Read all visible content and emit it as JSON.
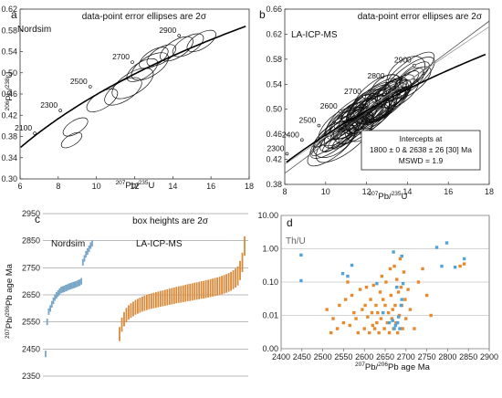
{
  "chart_data": [
    {
      "type": "scatter",
      "panel": "a",
      "title": "data-point error ellipses are 2σ",
      "label": "Nordsim",
      "xlabel": {
        "sup1": "207",
        "main1": "Pb/",
        "sup2": "235",
        "main2": "U"
      },
      "ylabel": {
        "sup1": "206",
        "main1": "Pb/",
        "sup2": "238",
        "main2": "U"
      },
      "xlim": [
        6,
        18
      ],
      "ylim": [
        0.3,
        0.62
      ],
      "xticks": [
        6,
        8,
        10,
        12,
        14,
        16,
        18
      ],
      "yticks": [
        0.3,
        0.34,
        0.38,
        0.42,
        0.46,
        0.5,
        0.54,
        0.58,
        0.62
      ],
      "ytick_labels": [
        "0.30",
        "0.34",
        "0.38",
        "0.42",
        "0.46",
        "0.50",
        "0.54",
        "0.58",
        "0.62"
      ],
      "concordia_labels": [
        {
          "age": "2100",
          "x": 6.77,
          "y": 0.386
        },
        {
          "age": "2300",
          "x": 8.11,
          "y": 0.429
        },
        {
          "age": "2500",
          "x": 9.67,
          "y": 0.474
        },
        {
          "age": "2700",
          "x": 11.88,
          "y": 0.52
        },
        {
          "age": "2900",
          "x": 14.33,
          "y": 0.57
        }
      ],
      "ellipses": [
        {
          "x": 8.7,
          "y": 0.373,
          "rx": 0.45,
          "ry": 0.01
        },
        {
          "x": 8.9,
          "y": 0.398,
          "rx": 0.55,
          "ry": 0.012
        },
        {
          "x": 10.3,
          "y": 0.448,
          "rx": 0.6,
          "ry": 0.015
        },
        {
          "x": 11.4,
          "y": 0.465,
          "rx": 0.8,
          "ry": 0.018
        },
        {
          "x": 11.9,
          "y": 0.48,
          "rx": 0.9,
          "ry": 0.02
        },
        {
          "x": 12.4,
          "y": 0.505,
          "rx": 0.7,
          "ry": 0.015
        },
        {
          "x": 12.8,
          "y": 0.512,
          "rx": 0.9,
          "ry": 0.018
        },
        {
          "x": 13.0,
          "y": 0.528,
          "rx": 0.6,
          "ry": 0.014
        },
        {
          "x": 13.4,
          "y": 0.533,
          "rx": 0.7,
          "ry": 0.014
        },
        {
          "x": 14.2,
          "y": 0.545,
          "rx": 0.9,
          "ry": 0.016
        },
        {
          "x": 14.8,
          "y": 0.552,
          "rx": 0.9,
          "ry": 0.015
        },
        {
          "x": 15.5,
          "y": 0.56,
          "rx": 0.8,
          "ry": 0.014
        }
      ]
    },
    {
      "type": "scatter",
      "panel": "b",
      "title": "data-point error ellipses are 2σ",
      "label": "LA-ICP-MS",
      "xlabel": {
        "sup1": "207",
        "main1": "Pb/",
        "sup2": "235",
        "main2": "U"
      },
      "xlim": [
        8,
        18
      ],
      "ylim": [
        0.38,
        0.66
      ],
      "xticks": [
        8,
        10,
        12,
        14,
        16,
        18
      ],
      "yticks": [
        0.38,
        0.42,
        0.46,
        0.5,
        0.54,
        0.58,
        0.62,
        0.66
      ],
      "ytick_labels": [
        "0.38",
        "0.42",
        "0.46",
        "0.50",
        "0.54",
        "0.58",
        "0.62",
        "0.66"
      ],
      "concordia_labels": [
        {
          "age": "2300",
          "x": 8.11,
          "y": 0.429
        },
        {
          "age": "2400",
          "x": 8.84,
          "y": 0.451
        },
        {
          "age": "2500",
          "x": 9.67,
          "y": 0.474
        },
        {
          "age": "2600",
          "x": 10.71,
          "y": 0.497
        },
        {
          "age": "2700",
          "x": 11.88,
          "y": 0.52
        },
        {
          "age": "2800",
          "x": 13.02,
          "y": 0.545
        },
        {
          "age": "2900",
          "x": 14.33,
          "y": 0.57
        }
      ],
      "intercepts": {
        "line1": "Intercepts at",
        "line2": "1800 ± 0 & 2638 ± 26 [30] Ma",
        "line3": "MSWD = 1.9"
      }
    },
    {
      "type": "bar",
      "panel": "c",
      "title": "box heights are 2σ",
      "ylabel": {
        "sup1": "207",
        "main1": "Pb/",
        "sup2": "206",
        "main2": "Pb age Ma"
      },
      "ylim": [
        2350,
        2950
      ],
      "yticks": [
        2350,
        2450,
        2550,
        2650,
        2750,
        2850,
        2950
      ],
      "series": [
        {
          "name": "Nordsim",
          "color": "#7aa6c8",
          "values": [
            2432,
            2550,
            2588,
            2600,
            2615,
            2628,
            2640,
            2648,
            2655,
            2662,
            2668,
            2670,
            2672,
            2675,
            2677,
            2680,
            2682,
            2684,
            2686,
            2688,
            2690,
            2693,
            2695,
            2700,
            2770,
            2785,
            2800,
            2810,
            2820,
            2832,
            2840
          ]
        },
        {
          "name": "LA-ICP-MS",
          "color": "#d98a3a",
          "values": [
            2505,
            2540,
            2560,
            2575,
            2585,
            2592,
            2598,
            2604,
            2608,
            2612,
            2616,
            2619,
            2622,
            2625,
            2627,
            2629,
            2631,
            2633,
            2635,
            2637,
            2639,
            2641,
            2643,
            2645,
            2647,
            2649,
            2651,
            2652,
            2654,
            2656,
            2658,
            2659,
            2661,
            2663,
            2664,
            2666,
            2668,
            2669,
            2671,
            2673,
            2675,
            2677,
            2679,
            2681,
            2683,
            2686,
            2689,
            2692,
            2696,
            2700,
            2706,
            2712,
            2720,
            2740,
            2770,
            2830
          ]
        }
      ]
    },
    {
      "type": "scatter",
      "panel": "d",
      "label": "Th/U",
      "xlabel": {
        "sup1": "207",
        "main1": "Pb/",
        "sup2": "206",
        "main2": "Pb age Ma"
      },
      "xlim": [
        2400,
        2900
      ],
      "ylim_log": [
        0.001,
        10
      ],
      "xticks": [
        2400,
        2450,
        2500,
        2550,
        2600,
        2650,
        2700,
        2750,
        2800,
        2850,
        2900
      ],
      "yticks": [
        0.001,
        0.01,
        0.1,
        1,
        10
      ],
      "ytick_labels": [
        "0.00",
        "0.01",
        "0.10",
        "1.00",
        "10.00"
      ],
      "series": [
        {
          "name": "Nordsim",
          "color": "#4fa3d8",
          "points": [
            [
              2448,
              0.65
            ],
            [
              2448,
              0.11
            ],
            [
              2548,
              0.18
            ],
            [
              2560,
              0.15
            ],
            [
              2570,
              0.32
            ],
            [
              2630,
              0.09
            ],
            [
              2645,
              0.012
            ],
            [
              2660,
              0.006
            ],
            [
              2668,
              0.007
            ],
            [
              2672,
              0.004
            ],
            [
              2675,
              0.005
            ],
            [
              2678,
              0.07
            ],
            [
              2680,
              0.006
            ],
            [
              2682,
              0.009
            ],
            [
              2685,
              0.004
            ],
            [
              2688,
              0.02
            ],
            [
              2690,
              0.03
            ],
            [
              2693,
              0.09
            ],
            [
              2670,
              0.8
            ],
            [
              2690,
              0.6
            ],
            [
              2774,
              1.1
            ],
            [
              2786,
              0.3
            ],
            [
              2798,
              1.5
            ],
            [
              2818,
              0.28
            ],
            [
              2840,
              0.5
            ]
          ]
        },
        {
          "name": "LA-ICP-MS",
          "color": "#e8892b",
          "points": [
            [
              2510,
              0.015
            ],
            [
              2520,
              0.003
            ],
            [
              2525,
              0.008
            ],
            [
              2535,
              0.004
            ],
            [
              2540,
              0.02
            ],
            [
              2550,
              0.006
            ],
            [
              2555,
              0.03
            ],
            [
              2560,
              0.1
            ],
            [
              2565,
              0.005
            ],
            [
              2570,
              0.04
            ],
            [
              2575,
              0.012
            ],
            [
              2580,
              0.008
            ],
            [
              2585,
              0.003
            ],
            [
              2590,
              0.06
            ],
            [
              2595,
              0.015
            ],
            [
              2600,
              0.004
            ],
            [
              2602,
              0.02
            ],
            [
              2605,
              0.07
            ],
            [
              2608,
              0.009
            ],
            [
              2612,
              0.003
            ],
            [
              2615,
              0.03
            ],
            [
              2618,
              0.012
            ],
            [
              2620,
              0.005
            ],
            [
              2622,
              0.08
            ],
            [
              2625,
              0.004
            ],
            [
              2628,
              0.02
            ],
            [
              2630,
              0.006
            ],
            [
              2632,
              0.012
            ],
            [
              2635,
              0.003
            ],
            [
              2638,
              0.05
            ],
            [
              2640,
              0.008
            ],
            [
              2642,
              0.15
            ],
            [
              2645,
              0.03
            ],
            [
              2648,
              0.004
            ],
            [
              2650,
              0.02
            ],
            [
              2652,
              0.1
            ],
            [
              2655,
              0.006
            ],
            [
              2658,
              0.012
            ],
            [
              2660,
              0.003
            ],
            [
              2662,
              0.25
            ],
            [
              2664,
              0.04
            ],
            [
              2666,
              0.008
            ],
            [
              2668,
              0.015
            ],
            [
              2670,
              0.004
            ],
            [
              2672,
              0.3
            ],
            [
              2674,
              0.02
            ],
            [
              2676,
              0.006
            ],
            [
              2678,
              0.12
            ],
            [
              2680,
              0.003
            ],
            [
              2682,
              0.05
            ],
            [
              2684,
              0.01
            ],
            [
              2686,
              0.5
            ],
            [
              2688,
              0.07
            ],
            [
              2690,
              0.02
            ],
            [
              2692,
              0.004
            ],
            [
              2695,
              0.2
            ],
            [
              2698,
              0.03
            ],
            [
              2700,
              0.008
            ],
            [
              2705,
              0.06
            ],
            [
              2710,
              0.015
            ],
            [
              2720,
              0.004
            ],
            [
              2730,
              0.1
            ],
            [
              2740,
              0.25
            ],
            [
              2750,
              0.04
            ],
            [
              2760,
              0.01
            ],
            [
              2830,
              0.3
            ],
            [
              2840,
              0.35
            ]
          ]
        }
      ]
    }
  ]
}
